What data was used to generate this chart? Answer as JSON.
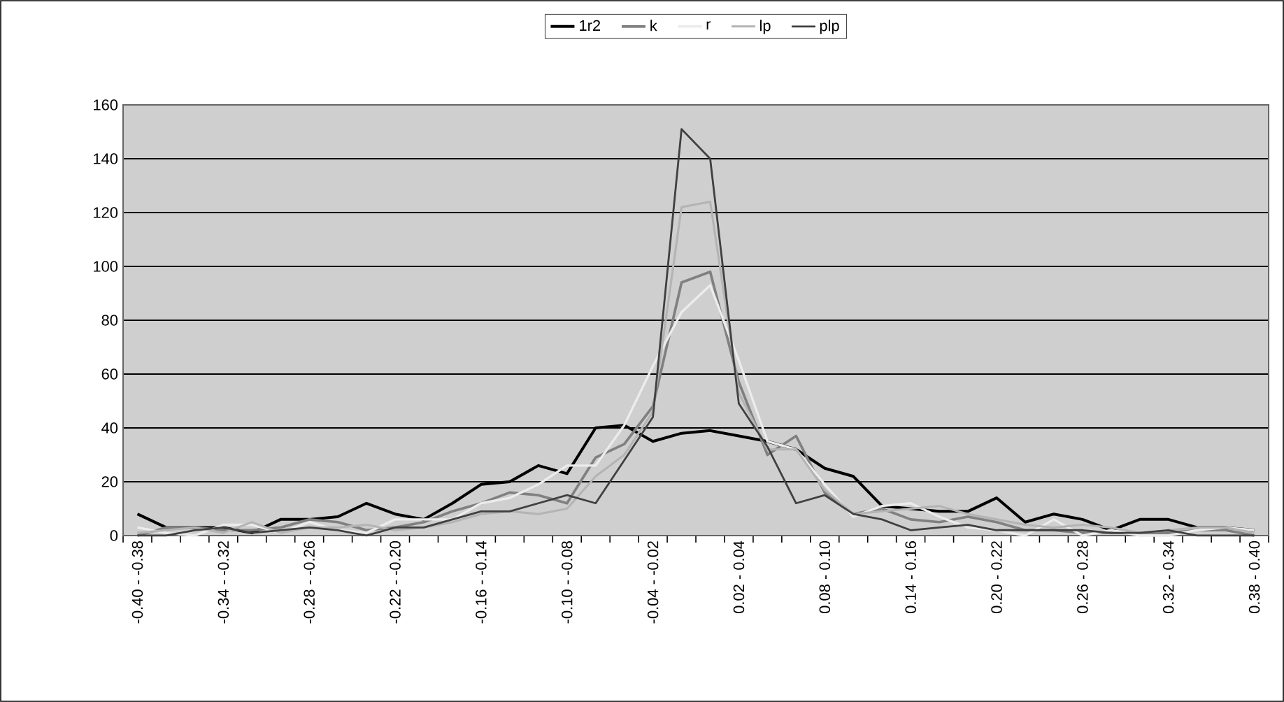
{
  "chart_data": {
    "type": "line",
    "categories": [
      "-0.40 - -0.38",
      null,
      null,
      "-0.34 - -0.32",
      null,
      null,
      "-0.28 - -0.26",
      null,
      null,
      "-0.22 - -0.20",
      null,
      null,
      "-0.16 - -0.14",
      null,
      null,
      "-0.10 - -0.08",
      null,
      null,
      "-0.04 - -0.02",
      null,
      null,
      "0.02 - 0.04",
      null,
      null,
      "0.08 - 0.10",
      null,
      null,
      "0.14 - 0.16",
      null,
      null,
      "0.20 - 0.22",
      null,
      null,
      "0.26 - 0.28",
      null,
      null,
      "0.32 - 0.34",
      null,
      null,
      "0.38 - 0.40"
    ],
    "series": [
      {
        "name": "1r2",
        "color": "#000000",
        "values": [
          8,
          3,
          3,
          3,
          1,
          6,
          6,
          7,
          12,
          8,
          6,
          12,
          19,
          20,
          26,
          23,
          40,
          41,
          35,
          38,
          39,
          37,
          35,
          32,
          25,
          22,
          11,
          10,
          9,
          9,
          14,
          5,
          8,
          6,
          2,
          6,
          6,
          3,
          3,
          2
        ]
      },
      {
        "name": "k",
        "color": "#808080",
        "values": [
          0,
          3,
          3,
          2,
          2,
          3,
          6,
          5,
          2,
          3,
          5,
          9,
          12,
          16,
          15,
          12,
          29,
          34,
          48,
          94,
          98,
          57,
          30,
          37,
          16,
          8,
          10,
          6,
          5,
          7,
          5,
          2,
          2,
          1,
          1,
          1,
          1,
          2,
          2,
          0
        ]
      },
      {
        "name": "r",
        "color": "#ececec",
        "values": [
          3,
          1,
          0,
          4,
          4,
          1,
          5,
          2,
          1,
          6,
          6,
          6,
          12,
          14,
          19,
          26,
          26,
          41,
          63,
          83,
          93,
          65,
          35,
          32,
          19,
          7,
          11,
          12,
          7,
          3,
          2,
          0,
          6,
          0,
          2,
          0,
          0,
          2,
          3,
          2
        ]
      },
      {
        "name": "lp",
        "color": "#b4b4b4",
        "values": [
          1,
          2,
          3,
          1,
          5,
          1,
          3,
          3,
          4,
          2,
          3,
          5,
          8,
          9,
          8,
          10,
          22,
          30,
          46,
          122,
          124,
          53,
          32,
          32,
          17,
          8,
          9,
          10,
          11,
          8,
          6,
          4,
          3,
          4,
          3,
          1,
          2,
          3,
          3,
          1
        ]
      },
      {
        "name": "plp",
        "color": "#404040",
        "values": [
          0,
          0,
          2,
          3,
          1,
          2,
          3,
          2,
          0,
          3,
          3,
          6,
          9,
          9,
          12,
          15,
          12,
          28,
          44,
          151,
          140,
          49,
          33,
          12,
          15,
          8,
          6,
          2,
          3,
          4,
          2,
          2,
          2,
          2,
          1,
          1,
          2,
          0,
          0,
          0
        ]
      }
    ],
    "ylim": [
      0,
      160
    ],
    "yticks": [
      0,
      20,
      40,
      60,
      80,
      100,
      120,
      140,
      160
    ],
    "grid": "y",
    "legend": "top"
  }
}
